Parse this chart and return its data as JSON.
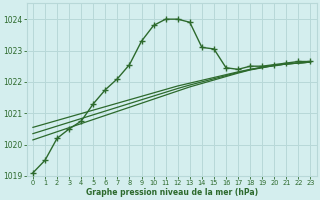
{
  "x_main": [
    0,
    1,
    2,
    3,
    4,
    5,
    6,
    7,
    8,
    9,
    10,
    11,
    12,
    13,
    14,
    15,
    16,
    17,
    18,
    19,
    20,
    21,
    22,
    23
  ],
  "y_main": [
    1019.1,
    1019.5,
    1020.2,
    1020.5,
    1020.75,
    1021.3,
    1021.75,
    1022.1,
    1022.55,
    1023.3,
    1023.8,
    1024.0,
    1024.0,
    1023.9,
    1023.1,
    1023.05,
    1022.45,
    1022.4,
    1022.5,
    1022.5,
    1022.55,
    1022.6,
    1022.65,
    1022.65
  ],
  "y_line1": [
    1020.15,
    1020.28,
    1020.41,
    1020.54,
    1020.67,
    1020.8,
    1020.93,
    1021.06,
    1021.19,
    1021.32,
    1021.45,
    1021.58,
    1021.71,
    1021.84,
    1021.95,
    1022.06,
    1022.17,
    1022.28,
    1022.38,
    1022.45,
    1022.52,
    1022.57,
    1022.6,
    1022.63
  ],
  "y_line2": [
    1020.35,
    1020.47,
    1020.59,
    1020.71,
    1020.83,
    1020.95,
    1021.07,
    1021.19,
    1021.31,
    1021.43,
    1021.55,
    1021.67,
    1021.79,
    1021.9,
    1022.0,
    1022.1,
    1022.2,
    1022.3,
    1022.39,
    1022.46,
    1022.52,
    1022.57,
    1022.6,
    1022.63
  ],
  "y_line3": [
    1020.55,
    1020.66,
    1020.77,
    1020.88,
    1020.99,
    1021.1,
    1021.21,
    1021.32,
    1021.43,
    1021.54,
    1021.65,
    1021.76,
    1021.87,
    1021.96,
    1022.05,
    1022.14,
    1022.23,
    1022.32,
    1022.4,
    1022.47,
    1022.53,
    1022.57,
    1022.6,
    1022.63
  ],
  "ylim": [
    1019.0,
    1024.5
  ],
  "xlim": [
    -0.5,
    23.5
  ],
  "yticks": [
    1019,
    1020,
    1021,
    1022,
    1023,
    1024
  ],
  "xticks": [
    0,
    1,
    2,
    3,
    4,
    5,
    6,
    7,
    8,
    9,
    10,
    11,
    12,
    13,
    14,
    15,
    16,
    17,
    18,
    19,
    20,
    21,
    22,
    23
  ],
  "line_color": "#2d6a2d",
  "bg_color": "#d4eeee",
  "grid_color": "#b8d8d8",
  "xlabel": "Graphe pression niveau de la mer (hPa)",
  "marker": "+",
  "marker_size": 4,
  "lw_main": 1.0,
  "lw_linear": 0.9
}
